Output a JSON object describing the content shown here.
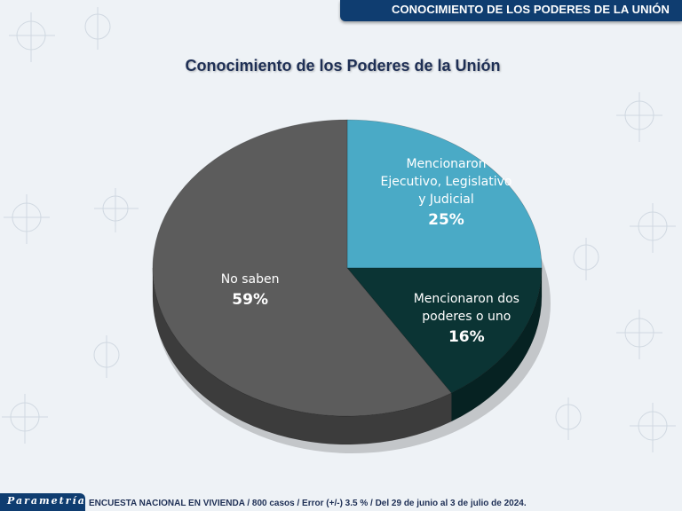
{
  "header": {
    "title": "CONOCIMIENTO DE LOS PODERES DE LA UNIÓN"
  },
  "footer": {
    "brand": "Parametría",
    "note": "ENCUESTA NACIONAL EN VIVIENDA / 800 casos / Error (+/-) 3.5 % / Del 29 de junio al 3 de julio de 2024."
  },
  "chart_data": {
    "type": "pie",
    "title": "Conocimiento de los Poderes de la Unión",
    "slices": [
      {
        "label": "Mencionaron Ejecutivo, Legislativo y Judicial",
        "value": 25,
        "value_label": "25%",
        "color": "#4aaac6",
        "side_color": "#2b7f99"
      },
      {
        "label": "Mencionaron dos poderes o uno",
        "value": 16,
        "value_label": "16%",
        "color": "#0b3434",
        "side_color": "#062222"
      },
      {
        "label": "No saben",
        "value": 59,
        "value_label": "59%",
        "color": "#5c5c5c",
        "side_color": "#3c3c3c"
      }
    ],
    "legend": "none"
  }
}
